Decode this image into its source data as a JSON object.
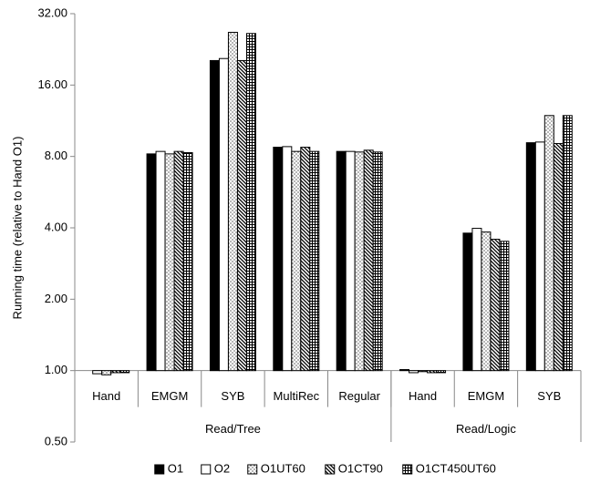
{
  "chart_data": {
    "type": "bar",
    "y_label": "Running time (relative to Hand O1)",
    "log_scale": true,
    "log_base": 2,
    "baseline": 1,
    "ylim": [
      0.5,
      32
    ],
    "yticks": [
      {
        "value": 0.5,
        "label": "0.50"
      },
      {
        "value": 1,
        "label": "1.00"
      },
      {
        "value": 2,
        "label": "2.00"
      },
      {
        "value": 4,
        "label": "4.00"
      },
      {
        "value": 8,
        "label": "8.00"
      },
      {
        "value": 16,
        "label": "16.00"
      },
      {
        "value": 32,
        "label": "32.00"
      }
    ],
    "grid": false,
    "legend": "bottom",
    "categories": [
      "Hand",
      "EMGM",
      "SYB",
      "MultiRec",
      "Regular",
      "Hand",
      "EMGM",
      "SYB"
    ],
    "groups": [
      {
        "label": "Read/Tree",
        "span": 5
      },
      {
        "label": "Read/Logic",
        "span": 3
      }
    ],
    "series": [
      {
        "name": "O1",
        "color": "#000000",
        "pattern": "solid",
        "values": [
          1.0,
          8.2,
          20.3,
          8.75,
          8.4,
          1.01,
          3.8,
          9.14
        ]
      },
      {
        "name": "O2",
        "color": "#000000",
        "pattern": "none",
        "values": [
          0.97,
          8.4,
          20.7,
          8.8,
          8.4,
          0.98,
          3.98,
          9.2
        ]
      },
      {
        "name": "O1UT60",
        "color": "#000000",
        "pattern": "dots",
        "values": [
          0.96,
          8.2,
          26.7,
          8.4,
          8.35,
          0.99,
          3.84,
          11.9
        ]
      },
      {
        "name": "O1CT90",
        "color": "#000000",
        "pattern": "diagonal",
        "values": [
          0.98,
          8.4,
          20.3,
          8.75,
          8.5,
          0.98,
          3.58,
          9.07
        ]
      },
      {
        "name": "O1CT450UT60",
        "color": "#000000",
        "pattern": "grid",
        "values": [
          0.98,
          8.3,
          26.4,
          8.4,
          8.35,
          0.98,
          3.51,
          11.9
        ]
      }
    ]
  }
}
